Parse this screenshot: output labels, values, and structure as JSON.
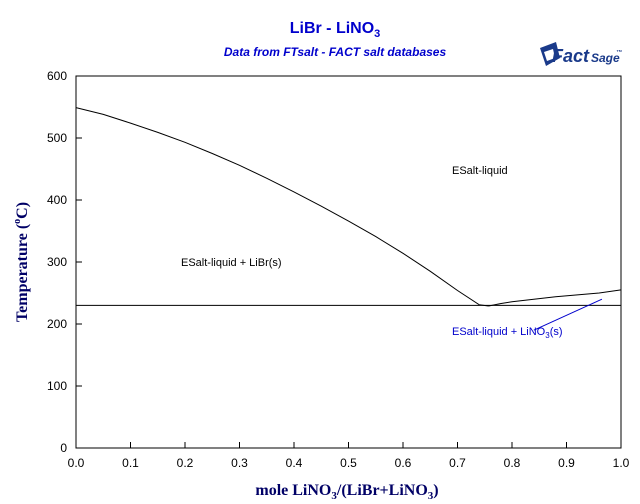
{
  "header": {
    "title_main": "LiBr - LiNO",
    "title_sub": "3",
    "subtitle": "Data from FTsalt - FACT salt databases",
    "logo_fact": "Fact",
    "logo_sage": "Sage",
    "logo_tm": "™"
  },
  "axes": {
    "ylabel_main": "Temperature (",
    "ylabel_deg": "o",
    "ylabel_unit": "C)",
    "xlabel_a": "mole LiNO",
    "xlabel_sub1": "3",
    "xlabel_b": "/(LiBr+LiNO",
    "xlabel_sub2": "3",
    "xlabel_c": ")"
  },
  "regions": {
    "liquid": "ESalt-liquid",
    "liquid_libr": "ESalt-liquid + LiBr(s)",
    "liquid_lino3_a": "ESalt-liquid + LiNO",
    "liquid_lino3_sub": "3",
    "liquid_lino3_b": "(s)"
  },
  "chart_data": {
    "type": "line",
    "xlim": [
      0.0,
      1.0
    ],
    "ylim": [
      0,
      600
    ],
    "x_ticks": [
      "0.0",
      "0.1",
      "0.2",
      "0.3",
      "0.4",
      "0.5",
      "0.6",
      "0.7",
      "0.8",
      "0.9",
      "1.0"
    ],
    "y_ticks": [
      "0",
      "100",
      "200",
      "300",
      "400",
      "500",
      "600"
    ],
    "grid": false,
    "series": [
      {
        "x": [
          0.0,
          0.05,
          0.1,
          0.15,
          0.2,
          0.25,
          0.3,
          0.35,
          0.4,
          0.45,
          0.5,
          0.55,
          0.6,
          0.65,
          0.7,
          0.74,
          0.757
        ],
        "y": [
          549,
          538,
          524,
          509,
          493,
          475,
          456,
          435,
          413,
          390,
          366,
          341,
          314,
          285,
          254,
          231,
          229
        ]
      },
      {
        "x": [
          0.757,
          0.78,
          0.8,
          0.84,
          0.88,
          0.92,
          0.96,
          1.0
        ],
        "y": [
          229,
          233,
          236,
          240,
          244,
          247,
          250,
          255
        ]
      },
      {
        "x": [
          0.0,
          1.0
        ],
        "y": [
          230,
          230
        ]
      }
    ],
    "pointer": {
      "x": [
        0.84,
        0.965
      ],
      "y": [
        190,
        240
      ]
    }
  },
  "colors": {
    "title": "#0000cc",
    "line": "#000000",
    "pointer": "#0000cc",
    "axis_label": "#000066"
  }
}
